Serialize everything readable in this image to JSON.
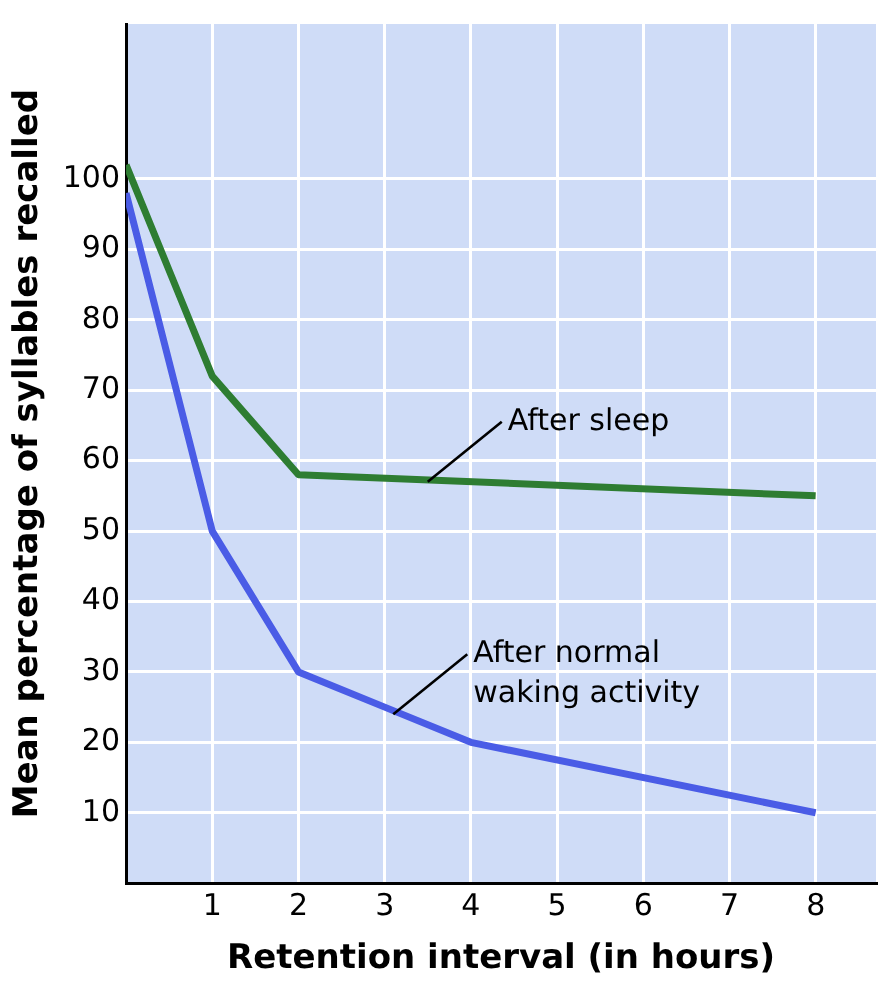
{
  "chart_data": {
    "type": "line",
    "xlabel": "Retention interval (in hours)",
    "ylabel": "Mean percentage of syllables recalled",
    "xlim": [
      0,
      8.7
    ],
    "ylim": [
      0,
      122
    ],
    "xticks": [
      1,
      2,
      3,
      4,
      5,
      6,
      7,
      8
    ],
    "yticks": [
      10,
      20,
      30,
      40,
      50,
      60,
      70,
      80,
      90,
      100
    ],
    "grid": true,
    "legend": false,
    "marker": "none",
    "line_style": "solid",
    "series": [
      {
        "color": "#2e7d32",
        "x": [
          0,
          1,
          2,
          8
        ],
        "values": [
          102,
          72,
          58,
          55
        ]
      },
      {
        "color": "#4a5ce6",
        "x": [
          0,
          1,
          2,
          3,
          4,
          8
        ],
        "values": [
          98,
          50,
          30,
          25,
          20,
          10
        ]
      }
    ],
    "annotations": [
      {
        "text": "After sleep",
        "x": 3.5,
        "y": 57
      },
      {
        "text": "After normal\nwaking activity",
        "x": 3.1,
        "y": 24
      }
    ]
  }
}
